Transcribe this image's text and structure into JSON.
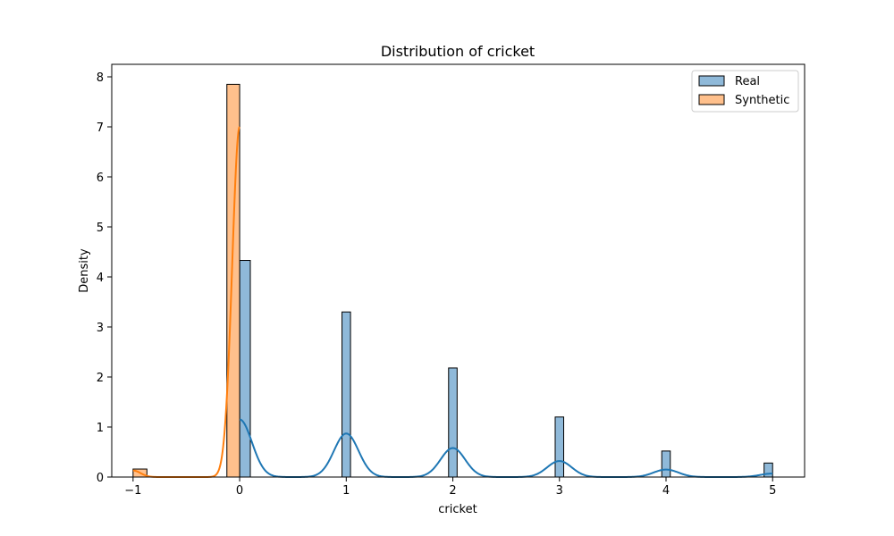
{
  "chart_data": {
    "type": "bar",
    "title": "Distribution of cricket",
    "xlabel": "cricket",
    "ylabel": "Density",
    "xlim": [
      -1.2,
      5.3
    ],
    "ylim": [
      0,
      8.25
    ],
    "grid": false,
    "legend_placement": "top-right",
    "xticks": [
      -1,
      0,
      1,
      2,
      3,
      4,
      5
    ],
    "xtick_labels": [
      "−1",
      "0",
      "1",
      "2",
      "3",
      "4",
      "5"
    ],
    "yticks": [
      0,
      1,
      2,
      3,
      4,
      5,
      6,
      7,
      8
    ],
    "ytick_labels": [
      "0",
      "1",
      "2",
      "3",
      "4",
      "5",
      "6",
      "7",
      "8"
    ],
    "series": [
      {
        "name": "Real",
        "color": "#1f77b4",
        "bar_color": "#8fb9d9",
        "bins": [
          {
            "x0": 0.0,
            "x1": 0.1,
            "density": 4.33
          },
          {
            "x0": 0.96,
            "x1": 1.04,
            "density": 3.3
          },
          {
            "x0": 1.96,
            "x1": 2.04,
            "density": 2.18
          },
          {
            "x0": 2.96,
            "x1": 3.04,
            "density": 1.2
          },
          {
            "x0": 3.96,
            "x1": 4.04,
            "density": 0.52
          },
          {
            "x0": 4.92,
            "x1": 5.0,
            "density": 0.28
          }
        ],
        "kde": {
          "peaks": [
            {
              "mu": 0.0,
              "height": 1.15
            },
            {
              "mu": 1.0,
              "height": 0.87
            },
            {
              "mu": 2.0,
              "height": 0.58
            },
            {
              "mu": 3.0,
              "height": 0.32
            },
            {
              "mu": 4.0,
              "height": 0.15
            },
            {
              "mu": 5.0,
              "height": 0.07
            }
          ],
          "bandwidth": 0.115,
          "range": [
            0.0,
            5.0
          ]
        }
      },
      {
        "name": "Synthetic",
        "color": "#ff7f0e",
        "bar_color": "#ffc08c",
        "bins": [
          {
            "x0": -1.0,
            "x1": -0.87,
            "density": 0.16
          },
          {
            "x0": -0.12,
            "x1": 0.0,
            "density": 7.85
          }
        ],
        "kde": {
          "peaks": [
            {
              "mu": 0.0,
              "height": 7.0
            },
            {
              "mu": -1.0,
              "height": 0.13
            }
          ],
          "bandwidth": 0.07,
          "range": [
            -1.0,
            0.0
          ]
        }
      }
    ]
  }
}
